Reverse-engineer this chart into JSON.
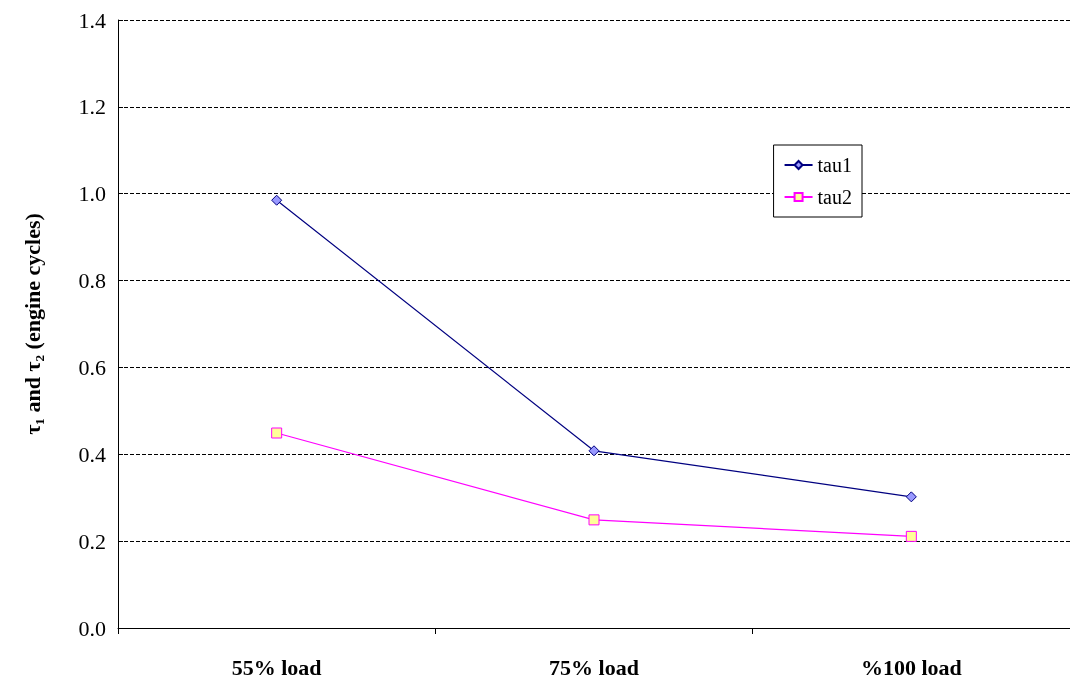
{
  "chart_data": {
    "type": "line",
    "ylabel": "τ₁ and τ₂ (engine cycles)",
    "categories": [
      "55% load",
      "75% load",
      "%100 load"
    ],
    "series": [
      {
        "name": "tau1",
        "color": "#000080",
        "marker": "diamond",
        "values": [
          0.985,
          0.408,
          0.302
        ]
      },
      {
        "name": "tau2",
        "color": "#ff00ff",
        "marker": "square",
        "values": [
          0.449,
          0.249,
          0.211
        ]
      }
    ],
    "ylim": [
      0,
      1.4
    ],
    "yticks": [
      {
        "value": 0,
        "label": "0.0"
      },
      {
        "value": 0.2,
        "label": "0.2"
      },
      {
        "value": 0.4,
        "label": "0.4"
      },
      {
        "value": 0.6,
        "label": "0.6"
      },
      {
        "value": 0.8,
        "label": "0.8"
      },
      {
        "value": 1,
        "label": "1.0"
      },
      {
        "value": 1.2,
        "label": "1.2"
      },
      {
        "value": 1.4,
        "label": "1.4"
      }
    ],
    "grid": "y",
    "legend": "top right",
    "line_style": "solid"
  }
}
